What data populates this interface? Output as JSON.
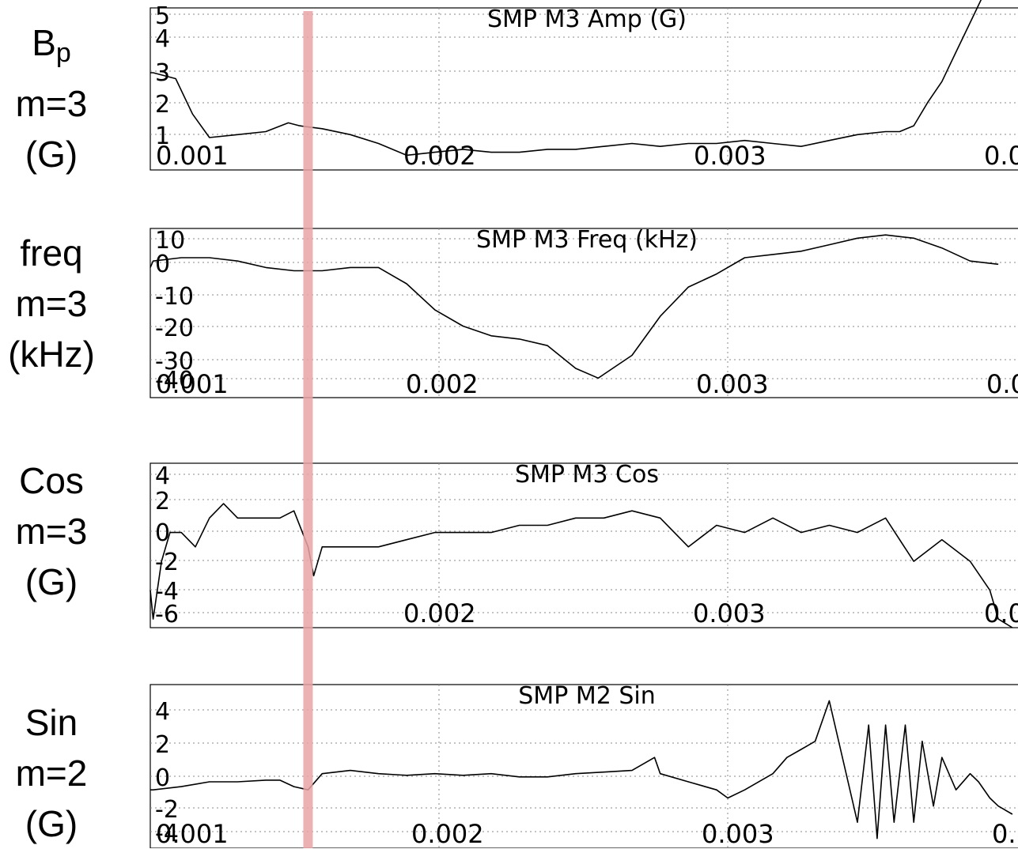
{
  "row_labels": [
    {
      "symbol": "B",
      "subscript": "p",
      "mode": "m=3",
      "unit": "(G)"
    },
    {
      "symbol": "freq",
      "subscript": "",
      "mode": "m=3",
      "unit": "(kHz)"
    },
    {
      "symbol": "Cos",
      "subscript": "",
      "mode": "m=3",
      "unit": "(G)"
    },
    {
      "symbol": "Sin",
      "subscript": "",
      "mode": "m=2",
      "unit": "(G)"
    }
  ],
  "colors": {
    "trace": "#000000",
    "grid": "#8a8a8a",
    "marker": "#e9a3a6"
  },
  "marker_time": 0.00155,
  "chart_data": [
    {
      "type": "line",
      "title": "SMP M3 Amp (G)",
      "xlim": [
        0.00099,
        0.00407
      ],
      "ylim": [
        -0.5,
        5.0
      ],
      "xticks": [
        "0.001",
        "0.002",
        "0.003",
        "0.0"
      ],
      "yticks": [
        "1",
        "2",
        "3",
        "4",
        "5"
      ],
      "x": [
        0.00099,
        0.001,
        0.00108,
        0.00114,
        0.0012,
        0.0013,
        0.0014,
        0.00148,
        0.00152,
        0.0016,
        0.0017,
        0.0018,
        0.0019,
        0.002,
        0.0021,
        0.0022,
        0.0023,
        0.0024,
        0.0025,
        0.0026,
        0.0027,
        0.0028,
        0.0029,
        0.003,
        0.0031,
        0.0032,
        0.0033,
        0.0034,
        0.0035,
        0.0036,
        0.00365,
        0.0037,
        0.00375,
        0.0038,
        0.00385,
        0.0039,
        0.00395,
        0.004
      ],
      "y": [
        2.8,
        2.8,
        2.6,
        1.4,
        0.6,
        0.7,
        0.8,
        1.1,
        1.0,
        0.9,
        0.7,
        0.4,
        0.0,
        0.1,
        0.2,
        0.1,
        0.1,
        0.2,
        0.2,
        0.3,
        0.4,
        0.3,
        0.4,
        0.4,
        0.5,
        0.4,
        0.3,
        0.5,
        0.7,
        0.8,
        0.8,
        1.0,
        1.8,
        2.5,
        3.5,
        4.5,
        5.5,
        6.5
      ]
    },
    {
      "type": "line",
      "title": "SMP M3 Freq (kHz)",
      "xlim": [
        0.00099,
        0.00407
      ],
      "ylim": [
        -40,
        12
      ],
      "xticks": [
        "0.001",
        "0.002",
        "0.003",
        "0.0"
      ],
      "yticks": [
        "10",
        "0",
        "-10",
        "-20",
        "-30",
        "-40"
      ],
      "x": [
        0.00099,
        0.001,
        0.0011,
        0.0012,
        0.0013,
        0.0014,
        0.0015,
        0.0016,
        0.0017,
        0.0018,
        0.0019,
        0.002,
        0.0021,
        0.0022,
        0.0023,
        0.0024,
        0.0025,
        0.00258,
        0.0027,
        0.0028,
        0.0029,
        0.003,
        0.0031,
        0.0032,
        0.0033,
        0.0034,
        0.0035,
        0.0036,
        0.0037,
        0.0038,
        0.0039,
        0.004
      ],
      "y": [
        0,
        2,
        3,
        3,
        2,
        0,
        -1,
        -1,
        0,
        0,
        -5,
        -13,
        -18,
        -21,
        -22,
        -24,
        -31,
        -34,
        -27,
        -15,
        -6,
        -2,
        3,
        4,
        5,
        7,
        9,
        10,
        9,
        6,
        2,
        1
      ]
    },
    {
      "type": "line",
      "title": "SMP M3 Cos",
      "xlim": [
        0.00099,
        0.00407
      ],
      "ylim": [
        -6.6,
        4.8
      ],
      "xticks": [
        "0.002",
        "0.003",
        "0.0"
      ],
      "yticks": [
        "4",
        "2",
        "0",
        "-2",
        "-4",
        "-6"
      ],
      "x": [
        0.00099,
        0.001,
        0.00103,
        0.00106,
        0.0011,
        0.00115,
        0.0012,
        0.00125,
        0.0013,
        0.00135,
        0.0014,
        0.00145,
        0.0015,
        0.00155,
        0.00157,
        0.0016,
        0.0017,
        0.0018,
        0.0019,
        0.002,
        0.0021,
        0.0022,
        0.0023,
        0.0024,
        0.0025,
        0.0026,
        0.0027,
        0.0028,
        0.0029,
        0.003,
        0.0031,
        0.0032,
        0.0033,
        0.0034,
        0.0035,
        0.0036,
        0.0037,
        0.0038,
        0.0039,
        0.00397,
        0.004,
        0.00405
      ],
      "y": [
        -4,
        -6,
        -2,
        0,
        0,
        -1,
        1,
        2,
        1,
        1,
        1,
        1,
        1.5,
        -1,
        -3,
        -1,
        -1,
        -1,
        -0.5,
        0,
        0,
        0,
        0.5,
        0.5,
        1,
        1,
        1.5,
        1,
        -1,
        0.5,
        0,
        1,
        0,
        0.5,
        0,
        1,
        -2,
        -0.5,
        -2,
        -4,
        -6,
        -6.6
      ]
    },
    {
      "type": "line",
      "title": "SMP M2 Sin",
      "xlim": [
        0.00099,
        0.00407
      ],
      "ylim": [
        -4.6,
        5.5
      ],
      "xticks": [
        "0.001",
        "0.002",
        "0.003",
        "0."
      ],
      "yticks": [
        "4",
        "2",
        "0",
        "-2",
        "-4"
      ],
      "x": [
        0.00099,
        0.001,
        0.0011,
        0.0012,
        0.0013,
        0.0014,
        0.00145,
        0.0015,
        0.00155,
        0.0016,
        0.0017,
        0.0018,
        0.0019,
        0.002,
        0.0021,
        0.0022,
        0.0023,
        0.0024,
        0.0025,
        0.0026,
        0.0027,
        0.00278,
        0.0028,
        0.0029,
        0.003,
        0.00304,
        0.0031,
        0.0032,
        0.00325,
        0.0033,
        0.00335,
        0.0034,
        0.0035,
        0.00354,
        0.00357,
        0.0036,
        0.00363,
        0.00367,
        0.0037,
        0.00373,
        0.00377,
        0.0038,
        0.00385,
        0.0039,
        0.00393,
        0.00397,
        0.004,
        0.00405
      ],
      "y": [
        -1,
        -1,
        -0.8,
        -0.5,
        -0.5,
        -0.4,
        -0.4,
        -0.8,
        -1,
        0,
        0.2,
        0,
        -0.1,
        0,
        -0.1,
        0,
        -0.2,
        -0.2,
        0,
        0.1,
        0.2,
        1.0,
        0,
        -0.5,
        -1.0,
        -1.5,
        -1,
        0,
        1,
        1.5,
        2,
        4.5,
        -3,
        3,
        -4,
        3,
        -3,
        3,
        -3,
        2,
        -2,
        1,
        -1,
        0,
        -0.5,
        -1.5,
        -2,
        -2.5
      ]
    }
  ]
}
